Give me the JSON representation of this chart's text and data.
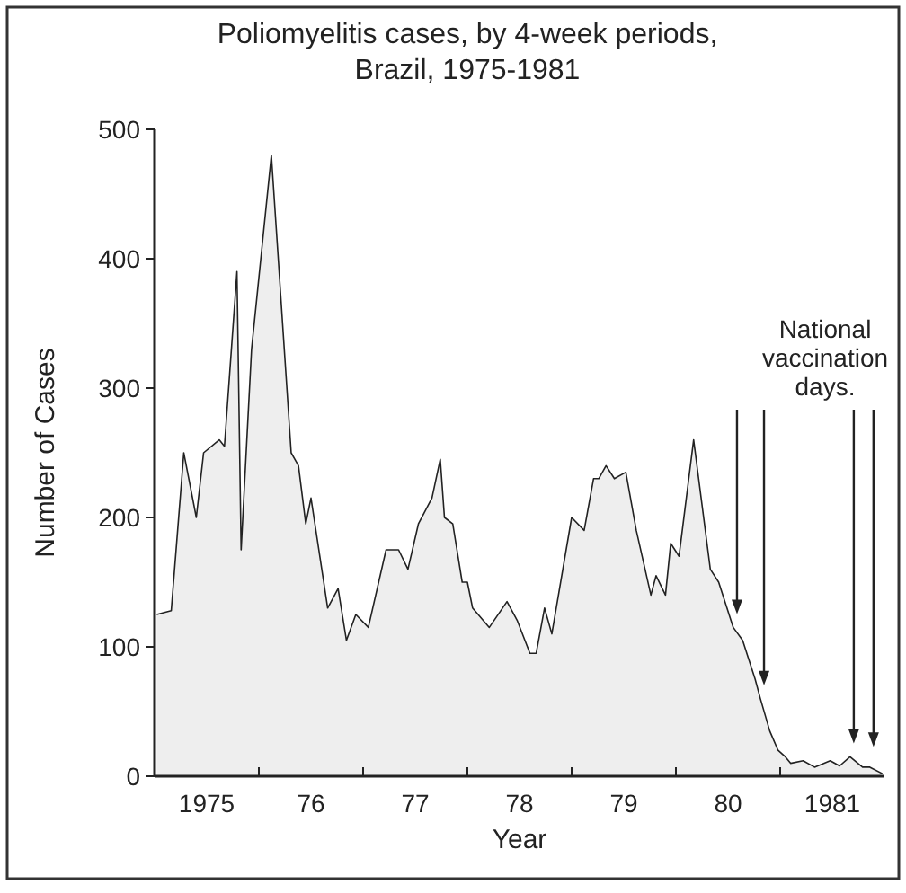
{
  "chart_data": {
    "type": "area",
    "title": "Poliomyelitis cases, by 4-week periods,\nBrazil, 1975-1981",
    "xlabel": "Year",
    "ylabel": "Number of Cases",
    "x": [
      1974.52,
      1974.66,
      1974.78,
      1974.9,
      1974.97,
      1975.12,
      1975.17,
      1975.29,
      1975.33,
      1975.43,
      1975.62,
      1975.81,
      1975.88,
      1975.95,
      1976,
      1976.16,
      1976.26,
      1976.34,
      1976.43,
      1976.55,
      1976.72,
      1976.84,
      1976.93,
      1977.03,
      1977.16,
      1977.24,
      1977.28,
      1977.36,
      1977.45,
      1977.5,
      1977.55,
      1977.71,
      1977.88,
      1977.98,
      1978.1,
      1978.16,
      1978.24,
      1978.31,
      1978.5,
      1978.62,
      1978.71,
      1978.76,
      1978.83,
      1978.91,
      1979.02,
      1979.12,
      1979.26,
      1979.31,
      1979.4,
      1979.45,
      1979.53,
      1979.67,
      1979.83,
      1979.91,
      1980.05,
      1980.14,
      1980.26,
      1980.31,
      1980.4,
      1980.48,
      1980.55,
      1980.6,
      1980.72,
      1980.83,
      1980.98,
      1981.07,
      1981.17,
      1981.29,
      1981.36,
      1981.48
    ],
    "series": [
      {
        "color": "#222222",
        "values": [
          125,
          128,
          250,
          200,
          250,
          260,
          255,
          390,
          175,
          330,
          480,
          250,
          240,
          195,
          215,
          130,
          145,
          105,
          125,
          115,
          175,
          175,
          160,
          195,
          215,
          245,
          200,
          195,
          150,
          150,
          130,
          115,
          135,
          120,
          95,
          95,
          130,
          110,
          200,
          190,
          230,
          230,
          240,
          230,
          235,
          190,
          140,
          155,
          140,
          180,
          170,
          260,
          160,
          150,
          115,
          105,
          75,
          60,
          35,
          20,
          15,
          10,
          12,
          7,
          12,
          8,
          15,
          7,
          7,
          2
        ]
      }
    ],
    "xlim": [
      1974.5,
      1981.5
    ],
    "xticks": [
      {
        "value": 1975,
        "label": "1975"
      },
      {
        "value": 1976,
        "label": "76"
      },
      {
        "value": 1977,
        "label": "77"
      },
      {
        "value": 1978,
        "label": "78"
      },
      {
        "value": 1979,
        "label": "79"
      },
      {
        "value": 1980,
        "label": "80"
      },
      {
        "value": 1981,
        "label": "1981"
      }
    ],
    "ylim": [
      0,
      500
    ],
    "yticks": [
      0,
      100,
      200,
      300,
      400,
      500
    ],
    "annotations": [
      "National\nvaccination\ndays."
    ]
  }
}
